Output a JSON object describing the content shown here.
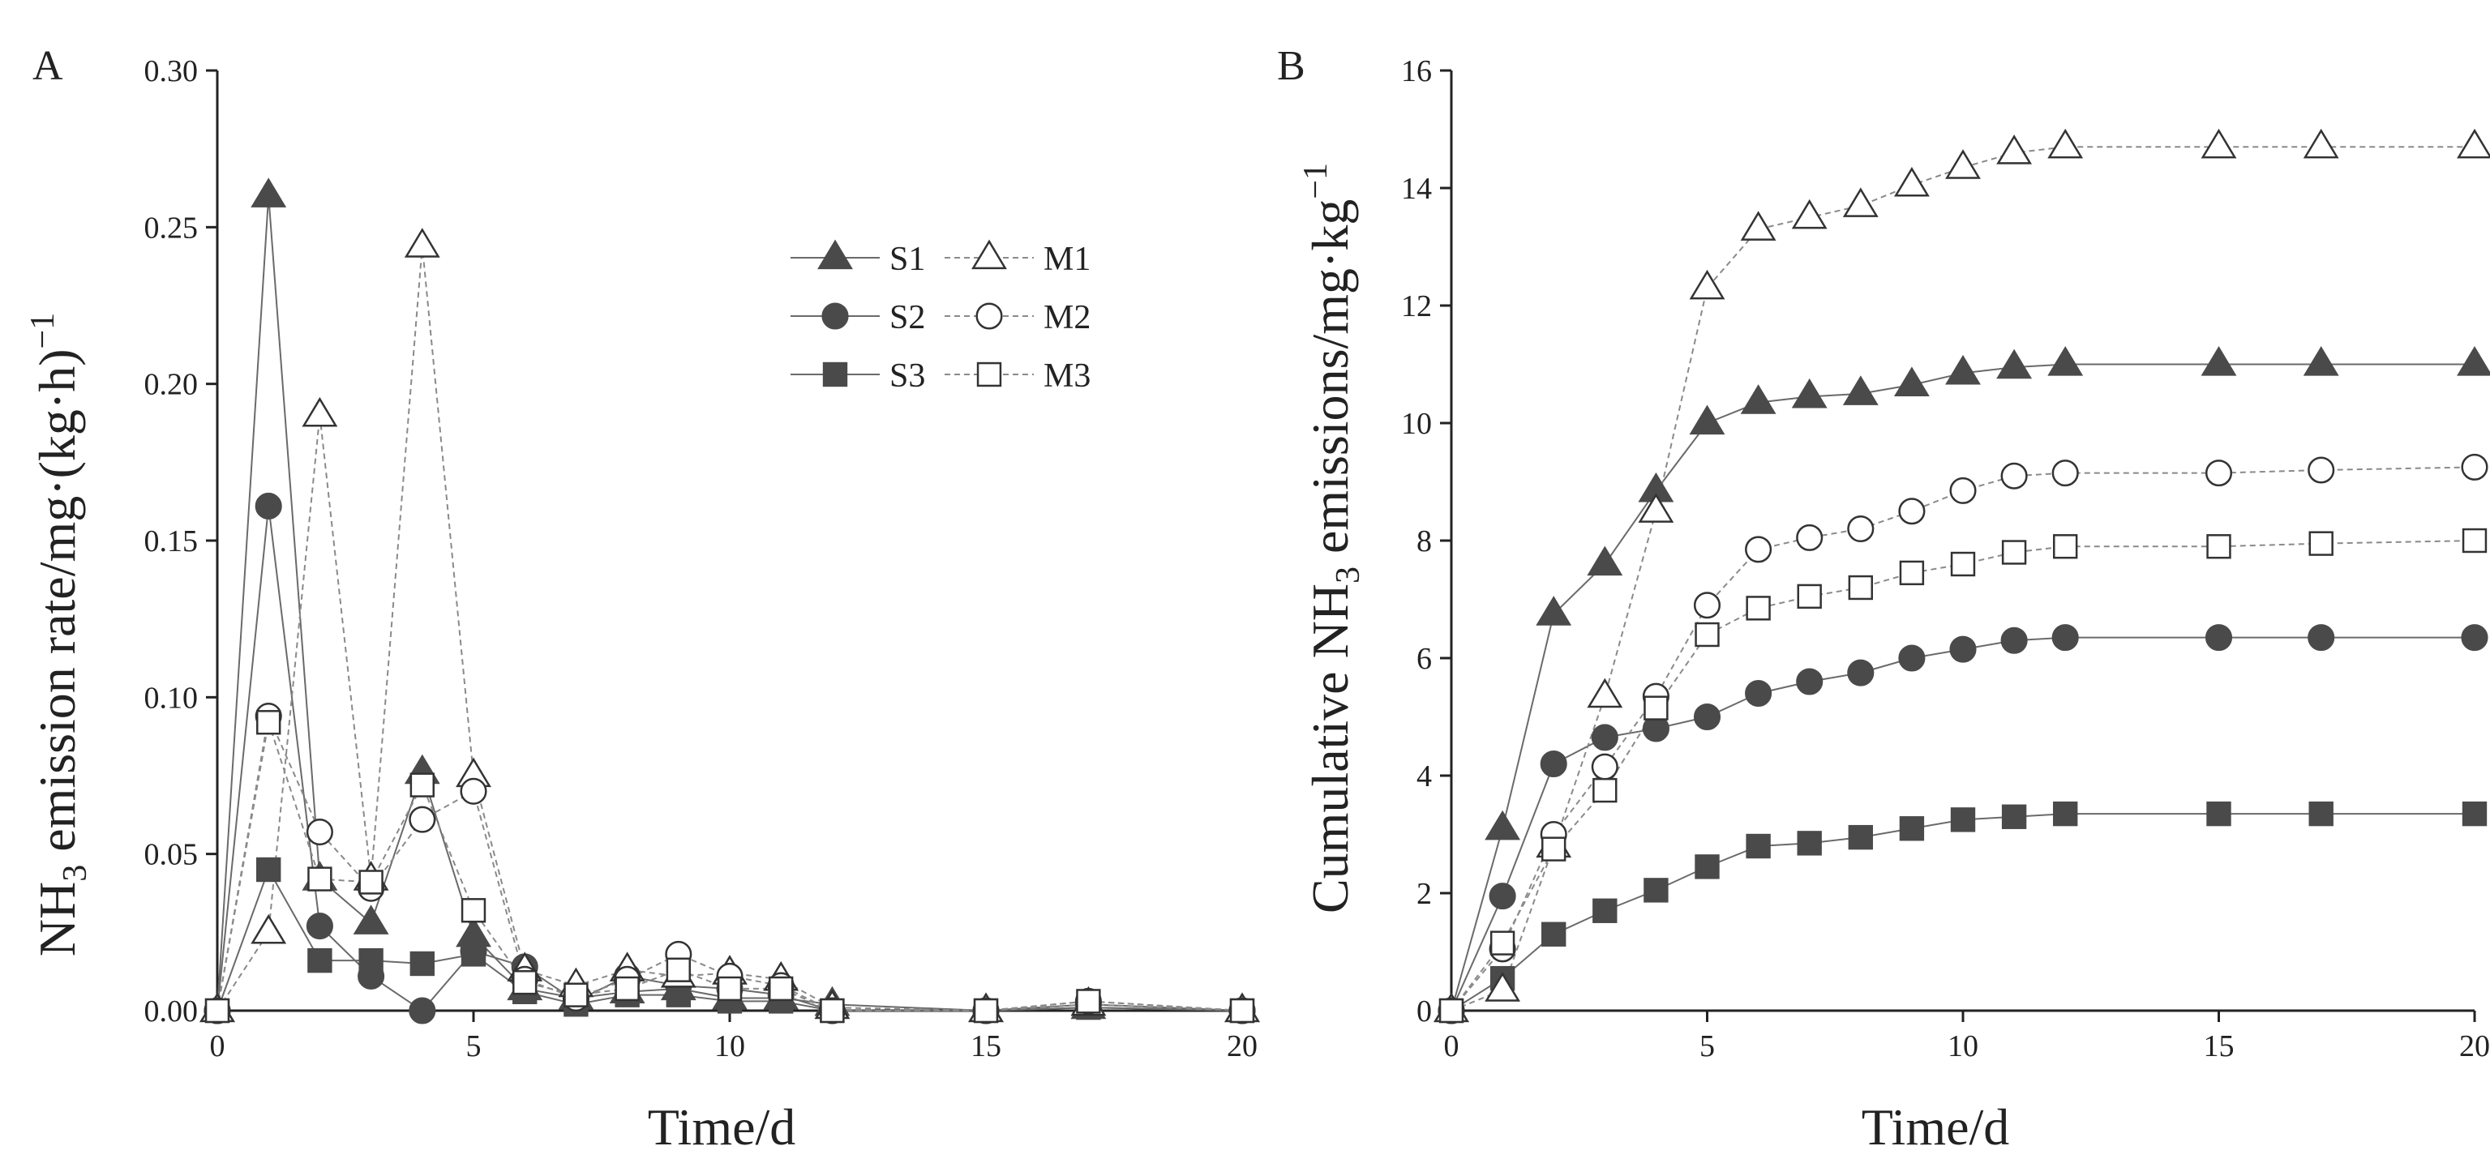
{
  "chart_data": [
    {
      "panel_label": "A",
      "type": "line",
      "title": "",
      "xlabel": "Time/d",
      "ylabel": "NH3 emission rate/mg·(kg·h)−1",
      "ylabel_parts": {
        "pre": "NH",
        "sub": "3",
        "mid": " emission rate/mg·(kg·h)",
        "sup": "−1"
      },
      "xlim": [
        0,
        20
      ],
      "ylim": [
        0,
        0.3
      ],
      "xticks": [
        0,
        5,
        10,
        15,
        20
      ],
      "xtick_labels": [
        "0",
        "5",
        "10",
        "15",
        "20"
      ],
      "yticks": [
        0,
        0.05,
        0.1,
        0.15,
        0.2,
        0.25,
        0.3
      ],
      "ytick_labels": [
        "0.00",
        "0.05",
        "0.10",
        "0.15",
        "0.20",
        "0.25",
        "0.30"
      ],
      "grid": false,
      "legend_position": "top-right",
      "x": [
        0,
        1,
        2,
        3,
        4,
        5,
        6,
        7,
        8,
        9,
        10,
        11,
        12,
        15,
        17,
        20
      ],
      "series": [
        {
          "name": "S1",
          "marker": "triangle",
          "filled": true,
          "values": [
            0,
            0.26,
            0.042,
            0.028,
            0.076,
            0.024,
            0.007,
            0.004,
            0.006,
            0.007,
            0.004,
            0.004,
            0.002,
            0,
            0.001,
            0
          ]
        },
        {
          "name": "S2",
          "marker": "circle",
          "filled": true,
          "values": [
            0,
            0.161,
            0.027,
            0.011,
            0,
            0.019,
            0.014,
            0.003,
            0.011,
            0.008,
            0.007,
            0.005,
            0,
            0,
            0.002,
            0
          ]
        },
        {
          "name": "S3",
          "marker": "square",
          "filled": true,
          "values": [
            0,
            0.045,
            0.016,
            0.016,
            0.015,
            0.018,
            0.006,
            0.002,
            0.005,
            0.005,
            0.003,
            0.003,
            0,
            0,
            0.001,
            0
          ]
        },
        {
          "name": "M1",
          "marker": "triangle",
          "filled": false,
          "values": [
            0,
            0.025,
            0.19,
            0.042,
            0.244,
            0.075,
            0.013,
            0.008,
            0.013,
            0.011,
            0.012,
            0.01,
            0.001,
            0,
            0.002,
            0
          ]
        },
        {
          "name": "M2",
          "marker": "circle",
          "filled": false,
          "values": [
            0,
            0.094,
            0.057,
            0.039,
            0.061,
            0.07,
            0.01,
            0.004,
            0.01,
            0.018,
            0.011,
            0.008,
            0,
            0,
            0.003,
            0
          ]
        },
        {
          "name": "M3",
          "marker": "square",
          "filled": false,
          "values": [
            0,
            0.092,
            0.042,
            0.041,
            0.072,
            0.032,
            0.009,
            0.005,
            0.007,
            0.013,
            0.007,
            0.007,
            0,
            0,
            0.003,
            0
          ]
        }
      ],
      "legend": {
        "rows": [
          {
            "left": "S1",
            "right": "M1"
          },
          {
            "left": "S2",
            "right": "M2"
          },
          {
            "left": "S3",
            "right": "M3"
          }
        ]
      }
    },
    {
      "panel_label": "B",
      "type": "line",
      "title": "",
      "xlabel": "Time/d",
      "ylabel": "Cumulative NH3 emissions/mg·kg−1",
      "ylabel_parts": {
        "pre": "Cumulative NH",
        "sub": "3",
        "mid": " emissions/mg·kg",
        "sup": "−1"
      },
      "xlim": [
        0,
        20
      ],
      "ylim": [
        0,
        16
      ],
      "xticks": [
        0,
        5,
        10,
        15,
        20
      ],
      "xtick_labels": [
        "0",
        "5",
        "10",
        "15",
        "20"
      ],
      "yticks": [
        0,
        2,
        4,
        6,
        8,
        10,
        12,
        14,
        16
      ],
      "ytick_labels": [
        "0",
        "2",
        "4",
        "6",
        "8",
        "10",
        "12",
        "14",
        "16"
      ],
      "grid": false,
      "x": [
        0,
        1,
        2,
        3,
        4,
        5,
        6,
        7,
        8,
        9,
        10,
        11,
        12,
        15,
        17,
        20
      ],
      "series": [
        {
          "name": "S1",
          "marker": "triangle",
          "filled": true,
          "values": [
            0,
            3.1,
            6.75,
            7.6,
            8.85,
            10.0,
            10.35,
            10.45,
            10.5,
            10.65,
            10.85,
            10.95,
            11.0,
            11.0,
            11.0,
            11.0
          ]
        },
        {
          "name": "S2",
          "marker": "circle",
          "filled": true,
          "values": [
            0,
            1.95,
            4.2,
            4.65,
            4.8,
            5.0,
            5.4,
            5.6,
            5.75,
            6.0,
            6.15,
            6.3,
            6.35,
            6.35,
            6.35,
            6.35
          ]
        },
        {
          "name": "S3",
          "marker": "square",
          "filled": true,
          "values": [
            0,
            0.55,
            1.3,
            1.7,
            2.05,
            2.45,
            2.8,
            2.85,
            2.95,
            3.1,
            3.25,
            3.3,
            3.35,
            3.35,
            3.35,
            3.35
          ]
        },
        {
          "name": "M1",
          "marker": "triangle",
          "filled": false,
          "values": [
            0,
            0.35,
            2.8,
            5.35,
            8.5,
            12.3,
            13.3,
            13.5,
            13.7,
            14.05,
            14.35,
            14.6,
            14.7,
            14.7,
            14.7,
            14.7
          ]
        },
        {
          "name": "M2",
          "marker": "circle",
          "filled": false,
          "values": [
            0,
            1.05,
            3.0,
            4.15,
            5.35,
            6.9,
            7.85,
            8.05,
            8.2,
            8.5,
            8.85,
            9.1,
            9.15,
            9.15,
            9.2,
            9.25
          ]
        },
        {
          "name": "M3",
          "marker": "square",
          "filled": false,
          "values": [
            0,
            1.15,
            2.75,
            3.75,
            5.15,
            6.4,
            6.85,
            7.05,
            7.2,
            7.45,
            7.6,
            7.8,
            7.9,
            7.9,
            7.95,
            8.0
          ]
        }
      ]
    }
  ]
}
